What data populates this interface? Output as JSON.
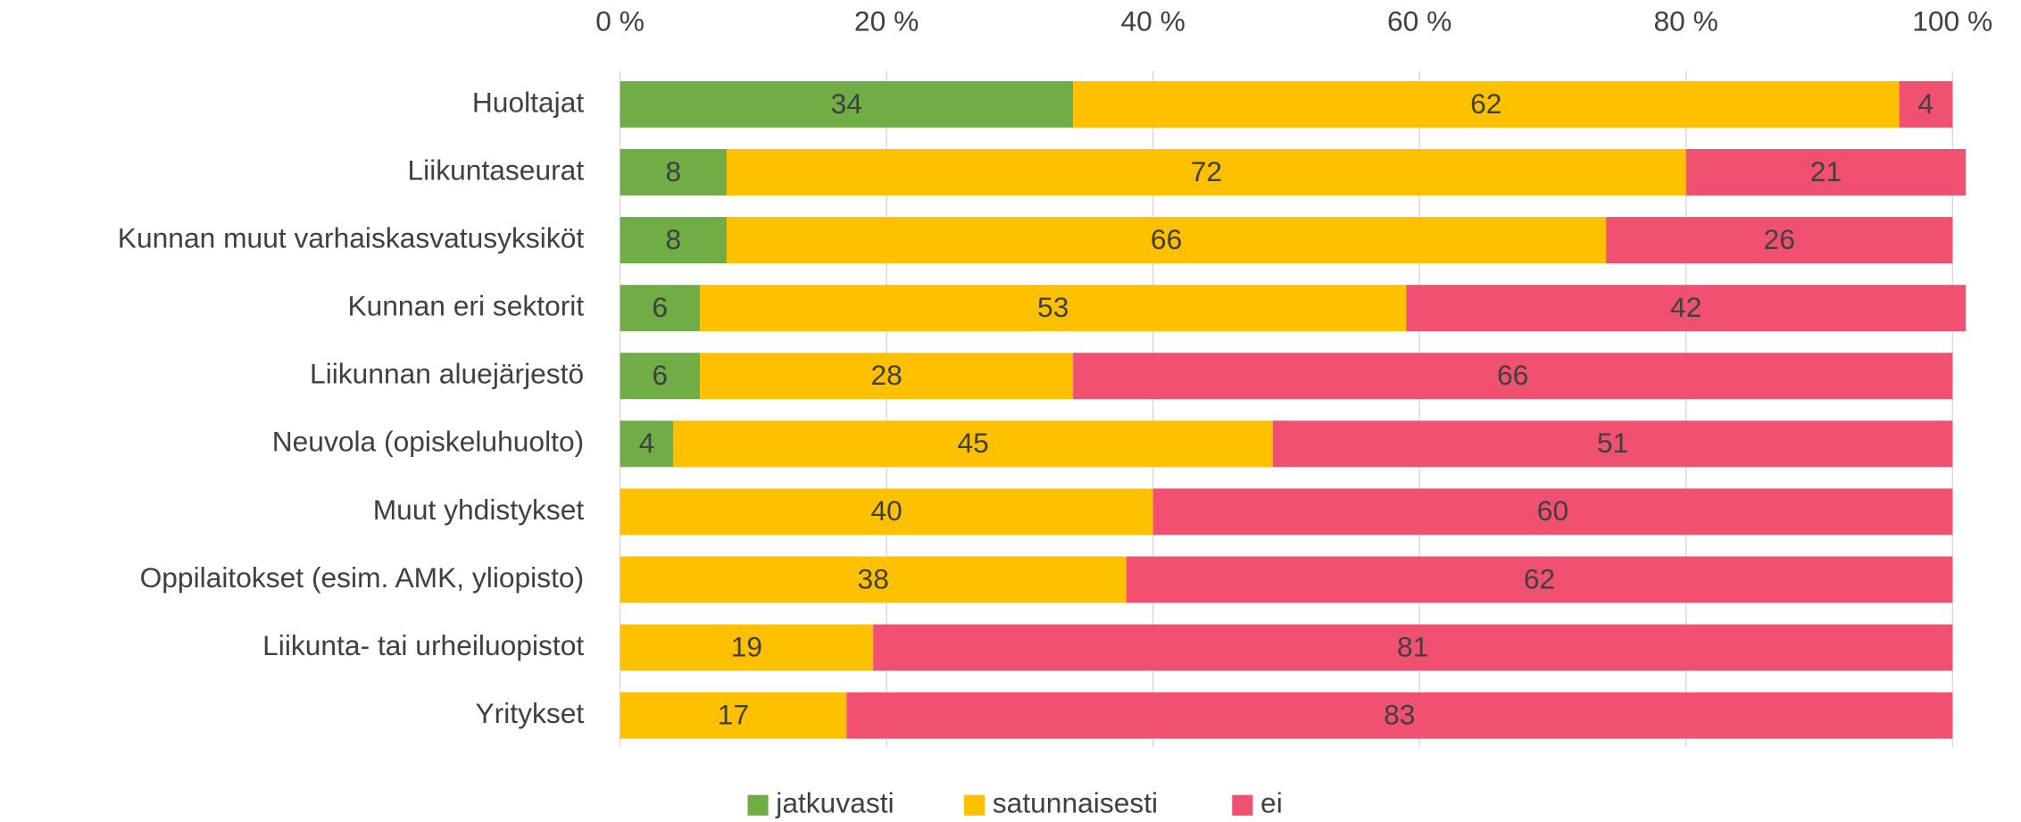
{
  "chart_data": {
    "type": "bar",
    "orientation": "horizontal",
    "stacked": true,
    "categories": [
      "Huoltajat",
      "Liikuntaseurat",
      "Kunnan muut varhaiskasvatusyksiköt",
      "Kunnan eri sektorit",
      "Liikunnan aluejärjestö",
      "Neuvola (opiskeluhuolto)",
      "Muut yhdistykset",
      "Oppilaitokset (esim. AMK, yliopisto)",
      "Liikunta- tai urheiluopistot",
      "Yritykset"
    ],
    "series": [
      {
        "name": "jatkuvasti",
        "color": "#70ad47",
        "values": [
          34,
          8,
          8,
          6,
          6,
          4,
          null,
          null,
          null,
          null
        ]
      },
      {
        "name": "satunnaisesti",
        "color": "#ffc000",
        "values": [
          62,
          72,
          66,
          53,
          28,
          45,
          40,
          38,
          19,
          17
        ]
      },
      {
        "name": "ei",
        "color": "#f05171",
        "values": [
          4,
          21,
          26,
          42,
          66,
          51,
          60,
          62,
          81,
          83
        ]
      }
    ],
    "xlim": [
      0,
      100
    ],
    "xticks": [
      {
        "value": 0,
        "label": "0 %"
      },
      {
        "value": 20,
        "label": "20 %"
      },
      {
        "value": 40,
        "label": "40 %"
      },
      {
        "value": 60,
        "label": "60 %"
      },
      {
        "value": 80,
        "label": "80 %"
      },
      {
        "value": 100,
        "label": "100 %"
      }
    ],
    "grid": true,
    "legend": "bottom"
  }
}
